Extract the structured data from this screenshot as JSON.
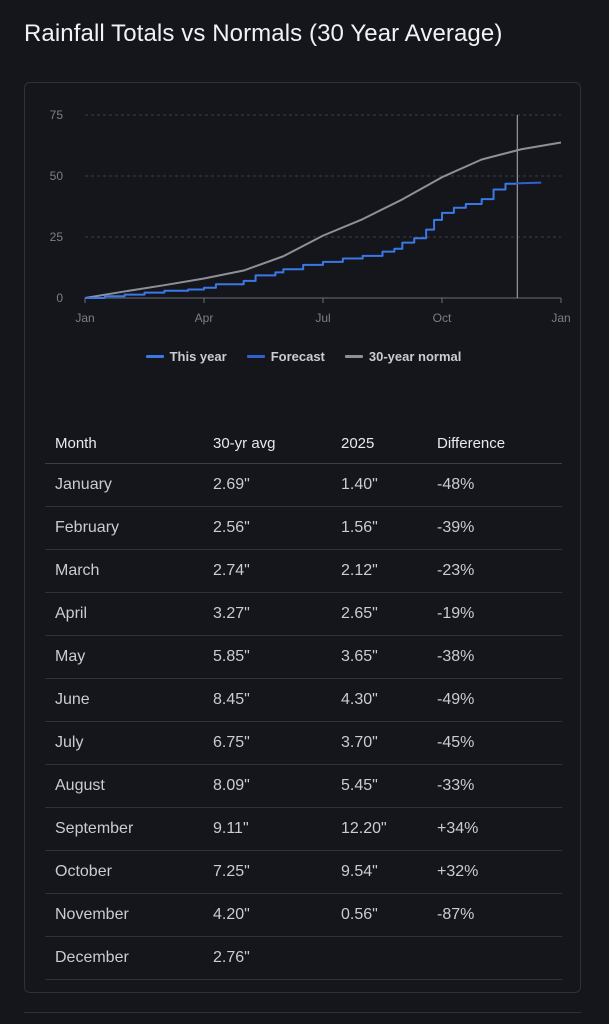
{
  "title": "Rainfall Totals vs Normals (30 Year Average)",
  "chart_data": {
    "type": "line",
    "x_ticks": [
      "Jan",
      "Apr",
      "Jul",
      "Oct",
      "Jan"
    ],
    "y_ticks": [
      0,
      25,
      50,
      75
    ],
    "ylim": [
      0,
      75
    ],
    "xlim": [
      0,
      12
    ],
    "legend": [
      {
        "name": "This year",
        "color": "#3b78e7"
      },
      {
        "name": "Forecast",
        "color": "#2f5fd0"
      },
      {
        "name": "30-year normal",
        "color": "#8d9098"
      }
    ],
    "series": [
      {
        "name": "30-year normal",
        "color": "#8d9098",
        "x": [
          0,
          1,
          2,
          3,
          4,
          5,
          6,
          7,
          8,
          9,
          10,
          11,
          12
        ],
        "y": [
          0,
          2.69,
          5.25,
          7.99,
          11.26,
          17.11,
          25.56,
          32.31,
          40.4,
          49.51,
          56.76,
          60.96,
          63.72
        ]
      },
      {
        "name": "This year",
        "color": "#3b78e7",
        "x": [
          0,
          0.5,
          1.0,
          1.5,
          2.0,
          2.6,
          3.0,
          3.3,
          4.0,
          4.3,
          4.8,
          5.0,
          5.5,
          6.0,
          6.5,
          7.0,
          7.5,
          7.8,
          8.0,
          8.3,
          8.6,
          8.8,
          9.0,
          9.3,
          9.6,
          10.0,
          10.3,
          10.6,
          10.87
        ],
        "y": [
          0,
          0.7,
          1.4,
          2.2,
          2.96,
          3.5,
          4.2,
          5.61,
          7.0,
          9.26,
          10.5,
          11.8,
          13.56,
          14.8,
          16.2,
          17.26,
          19.0,
          20.2,
          22.71,
          24.5,
          28.0,
          32.0,
          34.91,
          37.0,
          38.5,
          40.5,
          44.45,
          46.8,
          47.0
        ]
      },
      {
        "name": "Forecast",
        "color": "#2f5fd0",
        "x": [
          10.87,
          11.5
        ],
        "y": [
          47.0,
          47.3
        ]
      }
    ],
    "markers": [
      {
        "x": 10.9,
        "label": ""
      }
    ]
  },
  "table": {
    "headers": [
      "Month",
      "30-yr avg",
      "2025",
      "Difference"
    ],
    "rows": [
      [
        "January",
        "2.69\"",
        "1.40\"",
        "-48%"
      ],
      [
        "February",
        "2.56\"",
        "1.56\"",
        "-39%"
      ],
      [
        "March",
        "2.74\"",
        "2.12\"",
        "-23%"
      ],
      [
        "April",
        "3.27\"",
        "2.65\"",
        "-19%"
      ],
      [
        "May",
        "5.85\"",
        "3.65\"",
        "-38%"
      ],
      [
        "June",
        "8.45\"",
        "4.30\"",
        "-49%"
      ],
      [
        "July",
        "6.75\"",
        "3.70\"",
        "-45%"
      ],
      [
        "August",
        "8.09\"",
        "5.45\"",
        "-33%"
      ],
      [
        "September",
        "9.11\"",
        "12.20\"",
        "+34%"
      ],
      [
        "October",
        "7.25\"",
        "9.54\"",
        "+32%"
      ],
      [
        "November",
        "4.20\"",
        "0.56\"",
        "-87%"
      ],
      [
        "December",
        "2.76\"",
        "",
        ""
      ]
    ]
  }
}
